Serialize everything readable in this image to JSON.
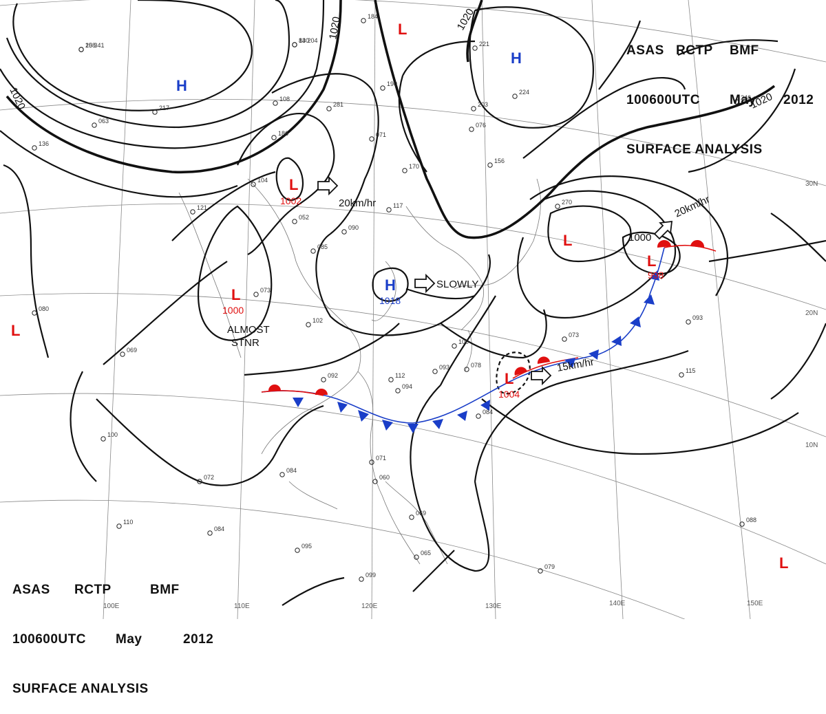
{
  "header": {
    "line1": [
      "ASAS",
      "RCTP",
      "BMF"
    ],
    "line2": [
      "100600UTC",
      "May",
      "2012"
    ],
    "line3": "SURFACE ANALYSIS"
  },
  "colors": {
    "high": "#1a3ec8",
    "low": "#e01010",
    "cold_front": "#1a3ec8",
    "warm_front": "#e01010",
    "isobar": "#111111"
  },
  "isobar_labels": [
    "1020",
    "1020",
    "1020",
    "1020"
  ],
  "pressure_centers": [
    {
      "type": "H",
      "value": ""
    },
    {
      "type": "H",
      "value": ""
    },
    {
      "type": "H",
      "value": "1018"
    },
    {
      "type": "L",
      "value": "1002"
    },
    {
      "type": "L",
      "value": "1000"
    },
    {
      "type": "L",
      "value": ""
    },
    {
      "type": "L",
      "value": "998"
    },
    {
      "type": "L",
      "value": "1004"
    },
    {
      "type": "L",
      "value": ""
    },
    {
      "type": "L",
      "value": ""
    },
    {
      "type": "L",
      "value": ""
    }
  ],
  "motion_labels": [
    "20km/hr",
    "SLOWLY",
    "20km/hr",
    "15km/hr",
    "ALMOST",
    "STNR",
    "1000"
  ],
  "longitude_labels": [
    "100E",
    "110E",
    "120E",
    "130E",
    "140E",
    "150E"
  ],
  "latitude_labels": [
    "30N",
    "20N",
    "10N"
  ],
  "station_samples": [
    "15 341",
    "13 204",
    "184",
    "190",
    "170",
    "117",
    "121",
    "090",
    "085",
    "073",
    "069",
    "080",
    "102",
    "092",
    "094",
    "112",
    "093",
    "078",
    "100",
    "073",
    "093",
    "115",
    "088",
    "084",
    "079",
    "099",
    "065",
    "069",
    "060",
    "071",
    "100",
    "110",
    "084",
    "095",
    "072",
    "084",
    "063",
    "136",
    "217",
    "108",
    "281",
    "186",
    "104",
    "052",
    "071",
    "076",
    "156",
    "203",
    "224",
    "221",
    "246",
    "270",
    "208",
    "840"
  ]
}
